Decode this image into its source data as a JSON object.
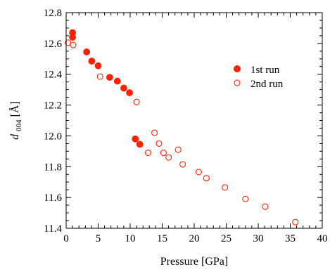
{
  "chart_data": {
    "type": "scatter",
    "title": "",
    "xlabel": "Pressure [GPa]",
    "ylabel_main": "d",
    "ylabel_sub": "004",
    "ylabel_unit": " [Å]",
    "xlim": [
      0,
      40
    ],
    "ylim": [
      11.4,
      12.8
    ],
    "xticks": [
      0,
      5,
      10,
      15,
      20,
      25,
      30,
      35,
      40
    ],
    "xtick_labels": [
      "0",
      "5",
      "10",
      "15",
      "20",
      "25",
      "30",
      "35",
      "40"
    ],
    "yticks": [
      11.4,
      11.6,
      11.8,
      12.0,
      12.2,
      12.4,
      12.6,
      12.8
    ],
    "ytick_labels": [
      "11.4",
      "11.6",
      "11.8",
      "12.0",
      "12.2",
      "12.4",
      "12.6",
      "12.8"
    ],
    "grid": false,
    "legend_position": "right",
    "series_color": "#ff2200",
    "series": [
      {
        "name": "1st run",
        "marker": "filled-circle",
        "points": [
          {
            "x": 1.0,
            "y": 12.67
          },
          {
            "x": 1.0,
            "y": 12.64
          },
          {
            "x": 3.2,
            "y": 12.545
          },
          {
            "x": 4.0,
            "y": 12.485
          },
          {
            "x": 5.0,
            "y": 12.455
          },
          {
            "x": 6.8,
            "y": 12.38
          },
          {
            "x": 8.0,
            "y": 12.355
          },
          {
            "x": 9.0,
            "y": 12.31
          },
          {
            "x": 9.9,
            "y": 12.28
          },
          {
            "x": 10.8,
            "y": 11.98
          },
          {
            "x": 11.5,
            "y": 11.945
          }
        ]
      },
      {
        "name": "2nd run",
        "marker": "open-circle",
        "points": [
          {
            "x": 0.3,
            "y": 12.605
          },
          {
            "x": 1.1,
            "y": 12.59
          },
          {
            "x": 5.3,
            "y": 12.385
          },
          {
            "x": 11.0,
            "y": 12.22
          },
          {
            "x": 12.8,
            "y": 11.89
          },
          {
            "x": 13.8,
            "y": 12.02
          },
          {
            "x": 14.5,
            "y": 11.95
          },
          {
            "x": 15.2,
            "y": 11.89
          },
          {
            "x": 16.0,
            "y": 11.86
          },
          {
            "x": 17.5,
            "y": 11.91
          },
          {
            "x": 18.2,
            "y": 11.815
          },
          {
            "x": 20.7,
            "y": 11.765
          },
          {
            "x": 21.9,
            "y": 11.725
          },
          {
            "x": 24.8,
            "y": 11.665
          },
          {
            "x": 28.0,
            "y": 11.59
          },
          {
            "x": 31.1,
            "y": 11.54
          },
          {
            "x": 35.8,
            "y": 11.44
          }
        ]
      }
    ]
  }
}
